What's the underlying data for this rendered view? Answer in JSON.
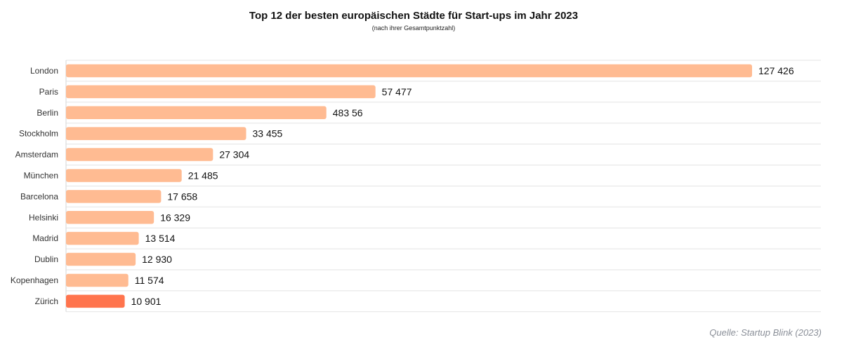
{
  "chart_data": {
    "type": "bar",
    "orientation": "horizontal",
    "title": "Top 12 der besten europäischen Städte für Start-ups im Jahr 2023",
    "subtitle": "(nach ihrer Gesamtpunktzahl)",
    "categories": [
      "London",
      "Paris",
      "Berlin",
      "Stockholm",
      "Amsterdam",
      "München",
      "Barcelona",
      "Helsinki",
      "Madrid",
      "Dublin",
      "Kopenhagen",
      "Zürich"
    ],
    "values": [
      127426,
      57477,
      48356,
      33455,
      27304,
      21485,
      17658,
      16329,
      13514,
      12930,
      11574,
      10901
    ],
    "value_labels": [
      "127 426",
      "57 477",
      "483 56",
      "33 455",
      "27 304",
      "21 485",
      "17 658",
      "16 329",
      "13 514",
      "12 930",
      "11 574",
      "10 901"
    ],
    "highlight": "Zürich",
    "xlim": [
      0,
      127426
    ],
    "grid": true,
    "colors": {
      "bar": "#ffbb92",
      "highlight": "#ff744d",
      "grid": "#e3e3e3"
    },
    "source": "Quelle: Startup Blink (2023)"
  }
}
